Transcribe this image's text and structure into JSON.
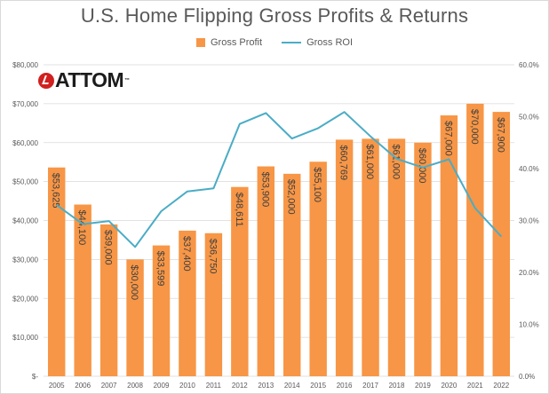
{
  "colors": {
    "bar": "#F79646",
    "line": "#4BACC6",
    "grid": "#D9D9D9",
    "text": "#595959",
    "logo_red": "#D0201F"
  },
  "logo": {
    "text": "ATTOM",
    "tm": "™",
    "icon": "attom-logo-icon"
  },
  "chart_data": {
    "type": "bar",
    "title": "U.S. Home Flipping Gross Profits & Returns",
    "categories": [
      "2005",
      "2006",
      "2007",
      "2008",
      "2009",
      "2010",
      "2011",
      "2012",
      "2013",
      "2014",
      "2015",
      "2016",
      "2017",
      "2018",
      "2019",
      "2020",
      "2021",
      "2022"
    ],
    "series": [
      {
        "name": "Gross Profit",
        "type": "bar",
        "axis": "left",
        "values": [
          53625,
          44100,
          39000,
          30000,
          33599,
          37400,
          36750,
          48611,
          53900,
          52000,
          55100,
          60769,
          61000,
          61000,
          60000,
          67000,
          70000,
          67900
        ],
        "labels": [
          "$53,625",
          "$44,100",
          "$39,000",
          "$30,000",
          "$33,599",
          "$37,400",
          "$36,750",
          "$48,611",
          "$53,900",
          "$52,000",
          "$55,100",
          "$60,769",
          "$61,000",
          "$61,000",
          "$60,000",
          "$67,000",
          "$70,000",
          "$67,900"
        ]
      },
      {
        "name": "Gross ROI",
        "type": "line",
        "axis": "right",
        "values": [
          33.0,
          29.3,
          29.9,
          24.9,
          31.8,
          35.6,
          36.2,
          48.6,
          50.7,
          45.8,
          47.8,
          50.9,
          46.2,
          41.9,
          40.2,
          41.8,
          32.4,
          26.9
        ]
      }
    ],
    "y_left": {
      "ticks": [
        "$-",
        "$10,000",
        "$20,000",
        "$30,000",
        "$40,000",
        "$50,000",
        "$60,000",
        "$70,000",
        "$80,000"
      ],
      "range": [
        0,
        80000
      ]
    },
    "y_right": {
      "ticks": [
        "0.0%",
        "10.0%",
        "20.0%",
        "30.0%",
        "40.0%",
        "50.0%",
        "60.0%"
      ],
      "range": [
        0,
        60
      ]
    },
    "grid": true,
    "legend": "top"
  }
}
